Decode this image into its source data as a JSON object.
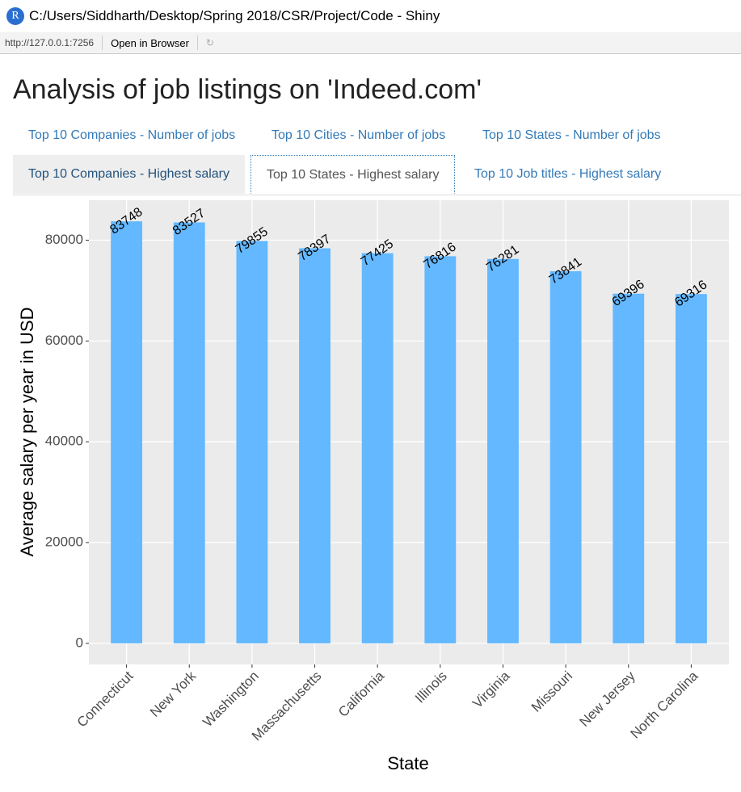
{
  "window": {
    "title": "C:/Users/Siddharth/Desktop/Spring 2018/CSR/Project/Code - Shiny",
    "url": "http://127.0.0.1:7256",
    "open_button": "Open in Browser"
  },
  "page": {
    "title": "Analysis of job listings on 'Indeed.com'",
    "tabs": [
      "Top 10 Companies - Number of jobs",
      "Top 10 Cities - Number of jobs",
      "Top 10 States - Number of jobs",
      "Top 10 Companies - Highest salary",
      "Top 10 States - Highest salary",
      "Top 10 Job titles - Highest salary"
    ]
  },
  "chart_data": {
    "type": "bar",
    "x_label": "State",
    "y_label": "Average salary per year in USD",
    "categories": [
      "Connecticut",
      "New York",
      "Washington",
      "Massachusetts",
      "California",
      "Illinois",
      "Virginia",
      "Missouri",
      "New Jersey",
      "North Carolina"
    ],
    "values": [
      83748,
      83527,
      79855,
      78397,
      77425,
      76816,
      76281,
      73841,
      69396,
      69316
    ],
    "color": "#63b8ff",
    "ylim": [
      -4187,
      87935
    ],
    "yticks": [
      0,
      20000,
      40000,
      60000,
      80000
    ],
    "grid": true
  }
}
